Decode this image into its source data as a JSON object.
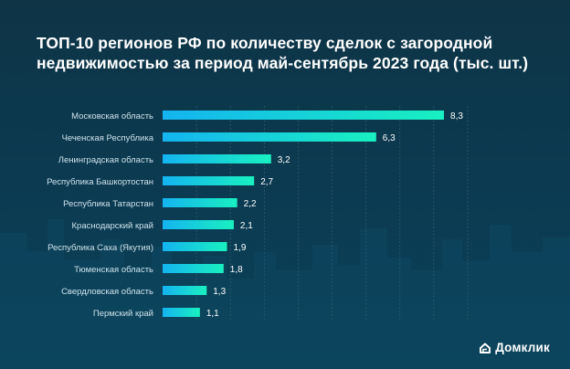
{
  "title_line1": "ТОП-10 регионов РФ по количеству сделок с загородной",
  "title_line2": "недвижимостью за период май-сентябрь 2023 года (тыс. шт.)",
  "brand": "Домклик",
  "colors": {
    "bar_start": "#14b4f0",
    "bar_end": "#19f0c0",
    "label": "#cfe2ea",
    "value": "#ffffff",
    "grid": "#2f5b6e"
  },
  "chart_data": {
    "type": "bar",
    "orientation": "horizontal",
    "title": "ТОП-10 регионов РФ по количеству сделок с загородной недвижимостью за период май-сентябрь 2023 года (тыс. шт.)",
    "categories": [
      "Московская область",
      "Чеченская Республика",
      "Ленинградская область",
      "Республика Башкортостан",
      "Республика Татарстан",
      "Краснодарский край",
      "Республика Саха (Якутия)",
      "Тюменская область",
      "Свердловская область",
      "Пермский край"
    ],
    "values": [
      8.3,
      6.3,
      3.2,
      2.7,
      2.2,
      2.1,
      1.9,
      1.8,
      1.3,
      1.1
    ],
    "value_labels": [
      "8,3",
      "6,3",
      "3,2",
      "2,7",
      "2,2",
      "2,1",
      "1,9",
      "1,8",
      "1,3",
      "1,1"
    ],
    "xlim": [
      0,
      9
    ],
    "grid": true
  }
}
